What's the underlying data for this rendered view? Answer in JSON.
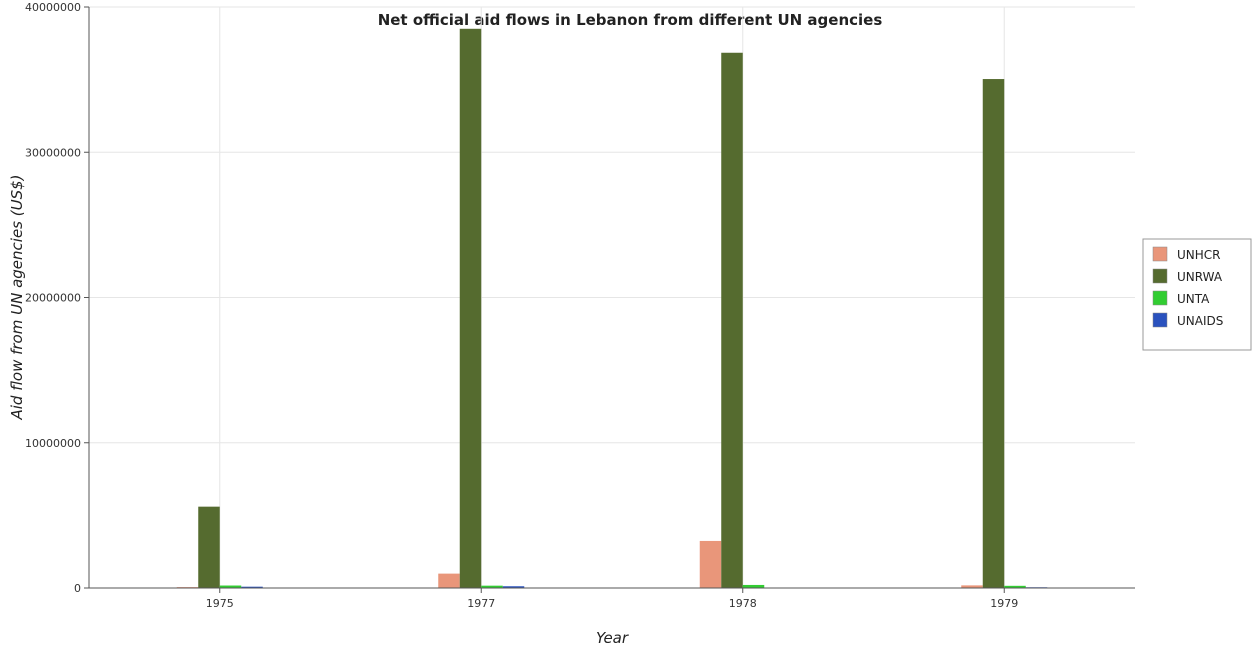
{
  "chart_data": {
    "type": "bar",
    "title": "Net official aid flows in Lebanon from different UN agencies",
    "xlabel": "Year",
    "ylabel": "Aid flow from UN agencies (US$)",
    "categories": [
      "1975",
      "1977",
      "1978",
      "1979"
    ],
    "ylim": [
      0,
      40000000
    ],
    "yticks": [
      0,
      10000000,
      20000000,
      30000000,
      40000000
    ],
    "ytick_labels": [
      "0",
      "10000000",
      "20000000",
      "30000000",
      "40000000"
    ],
    "grid": true,
    "legend_position": "right",
    "series": [
      {
        "name": "UNHCR",
        "color": "#e9967a",
        "values": [
          60000,
          990000,
          3240000,
          180000
        ]
      },
      {
        "name": "UNRWA",
        "color": "#556b2f",
        "values": [
          5600000,
          38500000,
          36850000,
          35040000
        ]
      },
      {
        "name": "UNTA",
        "color": "#32cd32",
        "values": [
          170000,
          160000,
          210000,
          150000
        ]
      },
      {
        "name": "UNAIDS",
        "color": "#2a52be",
        "values": [
          90000,
          120000,
          30000,
          50000
        ]
      }
    ]
  }
}
